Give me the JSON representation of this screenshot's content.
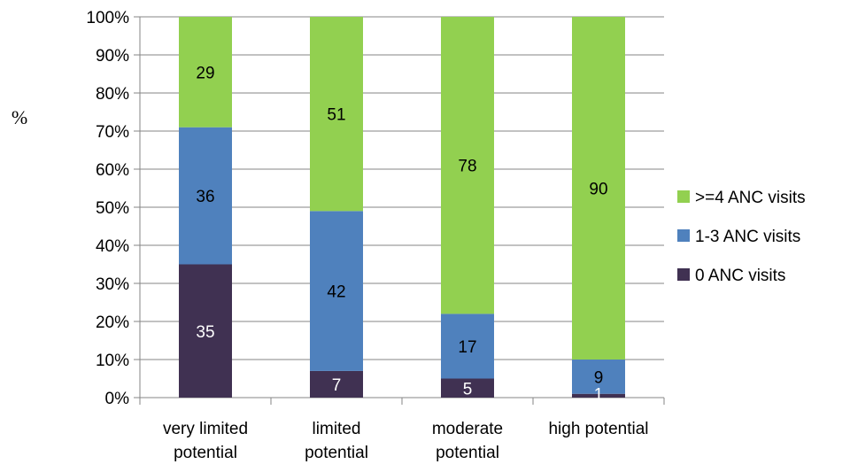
{
  "chart_data": {
    "type": "bar",
    "stacked": true,
    "ylabel": "%",
    "xlabel": "",
    "ylim": [
      0,
      100
    ],
    "yticks": [
      "0%",
      "10%",
      "20%",
      "30%",
      "40%",
      "50%",
      "60%",
      "70%",
      "80%",
      "90%",
      "100%"
    ],
    "categories": [
      [
        "very limited",
        "potential"
      ],
      [
        "limited",
        "potential"
      ],
      [
        "moderate",
        "potential"
      ],
      [
        "high potential"
      ]
    ],
    "series": [
      {
        "name": "0 ANC visits",
        "color": "#403152",
        "values": [
          35,
          7,
          5,
          1
        ],
        "labels": [
          "35",
          "7",
          "5",
          "1"
        ]
      },
      {
        "name": "1-3 ANC visits",
        "color": "#4f81bd",
        "values": [
          36,
          42,
          17,
          9
        ],
        "labels": [
          "36",
          "42",
          "17",
          "9"
        ]
      },
      {
        "name": ">=4 ANC visits",
        "color": "#92d050",
        "values": [
          29,
          51,
          78,
          90
        ],
        "labels": [
          "29",
          "51",
          "78",
          "90"
        ]
      }
    ],
    "grid": true,
    "legend_position": "right"
  }
}
